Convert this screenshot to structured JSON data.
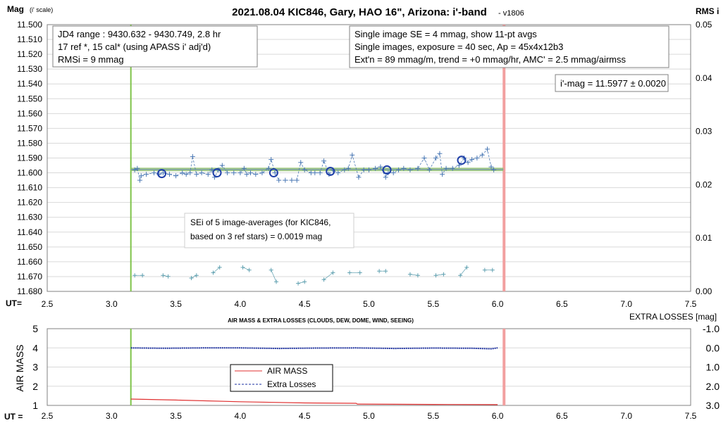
{
  "title": "2021.08.04 KIC846, Gary, HAO 16\", Arizona: i'-band",
  "version": "- v1806",
  "y_left_label_main": "Mag",
  "y_left_label_sub": "(i' scale)",
  "y_right_label": "RMS i",
  "x_axis_label": "UT=",
  "info_box_left": {
    "line1": "JD4 range : 9430.632 - 9430.749, 2.8  hr",
    "line2": "17 ref *, 15 cal* (using APASS i' adj'd)",
    "line3": "RMSi = 9 mmag"
  },
  "info_box_right": {
    "line1": "Single image SE = 4 mmag, show 11-pt avgs",
    "line2": "Single images, exposure = 40 sec, Ap = 45x4x12b3",
    "line3": "Ext'n = 89 mmag/m, trend = +0 mmag/hr, AMC' = 2.5 mmag/airmss"
  },
  "result_box": "i'-mag = 11.5977 ± 0.0020",
  "sei_box": {
    "line1": "SEi of 5 image-averages (for KIC846,",
    "line2": "based on 3 ref stars) = 0.0019 mag"
  },
  "lower_title": "AIR MASS & EXTRA LOSSES (CLOUDS, DEW, DOME, WIND, SEEING)",
  "lower_right_label": "EXTRA LOSSES [mag]",
  "lower_left_label": "AIR MASS",
  "lower_x_label": "UT =",
  "legend_airmass": "AIR MASS",
  "legend_losses": "Extra Losses",
  "colors": {
    "data_blue": "#4a78b4",
    "avg_circle": "#1f3fa8",
    "fit_green": "#8fbf6a",
    "start_line": "#7fc34a",
    "end_line": "#f2a0a0",
    "rms_teal": "#5fa0b0",
    "airmass_red": "#e03030",
    "losses_navy": "#1b2fa0"
  },
  "chart_data": [
    {
      "type": "scatter",
      "name": "main",
      "x_ticks": [
        "2.5",
        "3.0",
        "3.5",
        "4.0",
        "4.5",
        "5.0",
        "5.5",
        "6.0",
        "6.5",
        "7.0",
        "7.5"
      ],
      "y_ticks": [
        "11.500",
        "11.510",
        "11.520",
        "11.530",
        "11.540",
        "11.550",
        "11.560",
        "11.570",
        "11.580",
        "11.590",
        "11.600",
        "11.610",
        "11.620",
        "11.630",
        "11.640",
        "11.650",
        "11.660",
        "11.670",
        "11.680"
      ],
      "y2_ticks": [
        "0.05",
        "0.04",
        "0.03",
        "0.02",
        "0.01",
        "0.00"
      ],
      "xlim": [
        2.5,
        7.5
      ],
      "ylim": [
        11.68,
        11.5
      ],
      "y2lim": [
        0,
        0.05
      ],
      "start_ut": 3.15,
      "end_ut": 6.05,
      "fit_mag": 11.5977,
      "points": [
        [
          3.18,
          11.598
        ],
        [
          3.2,
          11.597
        ],
        [
          3.22,
          11.605
        ],
        [
          3.23,
          11.602
        ],
        [
          3.27,
          11.601
        ],
        [
          3.33,
          11.6
        ],
        [
          3.37,
          11.601
        ],
        [
          3.4,
          11.6
        ],
        [
          3.45,
          11.601
        ],
        [
          3.5,
          11.602
        ],
        [
          3.55,
          11.6
        ],
        [
          3.58,
          11.601
        ],
        [
          3.61,
          11.6
        ],
        [
          3.63,
          11.589
        ],
        [
          3.66,
          11.601
        ],
        [
          3.7,
          11.6
        ],
        [
          3.75,
          11.601
        ],
        [
          3.78,
          11.598
        ],
        [
          3.8,
          11.603
        ],
        [
          3.83,
          11.598
        ],
        [
          3.86,
          11.595
        ],
        [
          3.9,
          11.6
        ],
        [
          3.95,
          11.6
        ],
        [
          4.0,
          11.6
        ],
        [
          4.03,
          11.597
        ],
        [
          4.05,
          11.601
        ],
        [
          4.08,
          11.6
        ],
        [
          4.12,
          11.601
        ],
        [
          4.17,
          11.6
        ],
        [
          4.22,
          11.597
        ],
        [
          4.24,
          11.591
        ],
        [
          4.27,
          11.6
        ],
        [
          4.3,
          11.605
        ],
        [
          4.35,
          11.605
        ],
        [
          4.4,
          11.605
        ],
        [
          4.44,
          11.605
        ],
        [
          4.47,
          11.593
        ],
        [
          4.5,
          11.598
        ],
        [
          4.55,
          11.6
        ],
        [
          4.58,
          11.6
        ],
        [
          4.62,
          11.6
        ],
        [
          4.65,
          11.592
        ],
        [
          4.69,
          11.601
        ],
        [
          4.72,
          11.598
        ],
        [
          4.76,
          11.6
        ],
        [
          4.81,
          11.598
        ],
        [
          4.84,
          11.597
        ],
        [
          4.87,
          11.588
        ],
        [
          4.92,
          11.603
        ],
        [
          4.96,
          11.598
        ],
        [
          5.0,
          11.598
        ],
        [
          5.05,
          11.597
        ],
        [
          5.09,
          11.596
        ],
        [
          5.13,
          11.603
        ],
        [
          5.15,
          11.6
        ],
        [
          5.19,
          11.6
        ],
        [
          5.23,
          11.598
        ],
        [
          5.27,
          11.597
        ],
        [
          5.32,
          11.598
        ],
        [
          5.38,
          11.597
        ],
        [
          5.43,
          11.59
        ],
        [
          5.47,
          11.598
        ],
        [
          5.52,
          11.59
        ],
        [
          5.55,
          11.587
        ],
        [
          5.57,
          11.601
        ],
        [
          5.6,
          11.597
        ],
        [
          5.65,
          11.597
        ],
        [
          5.7,
          11.595
        ],
        [
          5.74,
          11.59
        ],
        [
          5.77,
          11.593
        ],
        [
          5.8,
          11.591
        ],
        [
          5.84,
          11.59
        ],
        [
          5.88,
          11.588
        ],
        [
          5.92,
          11.584
        ],
        [
          5.95,
          11.596
        ],
        [
          5.97,
          11.598
        ]
      ],
      "averages": [
        [
          3.39,
          11.6005
        ],
        [
          3.82,
          11.6
        ],
        [
          4.26,
          11.6
        ],
        [
          4.7,
          11.599
        ],
        [
          5.14,
          11.598
        ],
        [
          5.72,
          11.5915
        ]
      ],
      "rms": [
        [
          3.18,
          0.003
        ],
        [
          3.24,
          0.003
        ],
        [
          3.4,
          0.003
        ],
        [
          3.44,
          0.0028
        ],
        [
          3.62,
          0.0025
        ],
        [
          3.66,
          0.003
        ],
        [
          3.79,
          0.0035
        ],
        [
          3.84,
          0.0045
        ],
        [
          4.02,
          0.0045
        ],
        [
          4.07,
          0.004
        ],
        [
          4.24,
          0.004
        ],
        [
          4.28,
          0.0018
        ],
        [
          4.45,
          0.0015
        ],
        [
          4.5,
          0.0018
        ],
        [
          4.65,
          0.0022
        ],
        [
          4.72,
          0.0035
        ],
        [
          4.85,
          0.0035
        ],
        [
          4.93,
          0.0035
        ],
        [
          5.08,
          0.0038
        ],
        [
          5.13,
          0.0038
        ],
        [
          5.32,
          0.0032
        ],
        [
          5.38,
          0.003
        ],
        [
          5.52,
          0.003
        ],
        [
          5.58,
          0.0032
        ],
        [
          5.71,
          0.003
        ],
        [
          5.76,
          0.0045
        ],
        [
          5.9,
          0.004
        ],
        [
          5.96,
          0.004
        ]
      ]
    },
    {
      "type": "line",
      "name": "lower",
      "x_ticks": [
        "2.5",
        "3.0",
        "3.5",
        "4.0",
        "4.5",
        "5.0",
        "5.5",
        "6.0",
        "6.5",
        "7.0",
        "7.5"
      ],
      "y_ticks": [
        "5",
        "4",
        "3",
        "2",
        "1"
      ],
      "y2_ticks": [
        "-1.0",
        "0.0",
        "1.0",
        "2.0",
        "3.0"
      ],
      "xlim": [
        2.5,
        7.5
      ],
      "ylim": [
        1,
        5
      ],
      "y2lim": [
        -1,
        3
      ],
      "series": [
        {
          "name": "AIR MASS",
          "x": [
            3.15,
            3.5,
            4.0,
            4.5,
            4.9,
            4.91,
            5.5,
            6.0
          ],
          "values": [
            1.33,
            1.28,
            1.19,
            1.13,
            1.11,
            1.07,
            1.05,
            1.04
          ]
        },
        {
          "name": "Extra Losses",
          "x": [
            3.15,
            3.4,
            3.7,
            4.0,
            4.3,
            4.6,
            4.9,
            5.2,
            5.5,
            5.8,
            5.95,
            6.0
          ],
          "values": [
            0.0,
            0.02,
            0.0,
            0.0,
            0.03,
            0.01,
            0.0,
            0.03,
            0.01,
            0.02,
            0.05,
            0.0
          ]
        }
      ]
    }
  ]
}
